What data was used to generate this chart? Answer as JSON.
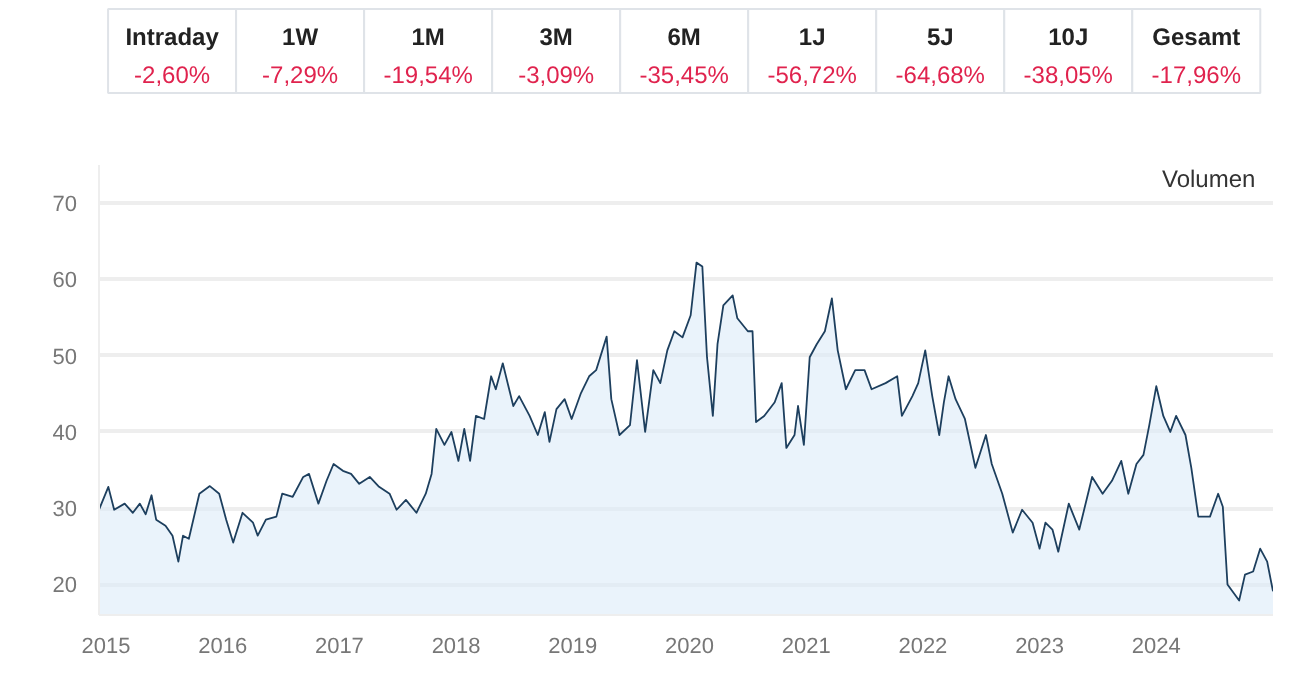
{
  "chart_data": {
    "type": "area",
    "color": "#1d3f5e",
    "x": [
      2014.94,
      2015.02,
      2015.07,
      2015.16,
      2015.23,
      2015.29,
      2015.34,
      2015.39,
      2015.43,
      2015.51,
      2015.57,
      2015.62,
      2015.66,
      2015.71,
      2015.8,
      2015.89,
      2015.97,
      2016.03,
      2016.09,
      2016.17,
      2016.26,
      2016.3,
      2016.37,
      2016.46,
      2016.51,
      2016.6,
      2016.69,
      2016.74,
      2016.82,
      2016.89,
      2016.95,
      2017.03,
      2017.1,
      2017.17,
      2017.26,
      2017.34,
      2017.43,
      2017.49,
      2017.57,
      2017.66,
      2017.74,
      2017.79,
      2017.83,
      2017.9,
      2017.96,
      2018.02,
      2018.07,
      2018.12,
      2018.17,
      2018.24,
      2018.3,
      2018.34,
      2018.4,
      2018.49,
      2018.54,
      2018.63,
      2018.7,
      2018.76,
      2018.8,
      2018.86,
      2018.93,
      2018.99,
      2019.07,
      2019.14,
      2019.2,
      2019.29,
      2019.33,
      2019.4,
      2019.49,
      2019.55,
      2019.62,
      2019.69,
      2019.75,
      2019.81,
      2019.87,
      2019.94,
      2020.01,
      2020.06,
      2020.11,
      2020.15,
      2020.2,
      2020.24,
      2020.29,
      2020.37,
      2020.41,
      2020.5,
      2020.54,
      2020.57,
      2020.64,
      2020.73,
      2020.79,
      2020.83,
      2020.9,
      2020.93,
      2020.98,
      2021.03,
      2021.09,
      2021.16,
      2021.22,
      2021.27,
      2021.34,
      2021.42,
      2021.5,
      2021.56,
      2021.68,
      2021.78,
      2021.82,
      2021.91,
      2021.96,
      2022.02,
      2022.08,
      2022.14,
      2022.18,
      2022.22,
      2022.28,
      2022.36,
      2022.45,
      2022.54,
      2022.59,
      2022.68,
      2022.77,
      2022.85,
      2022.94,
      2023.0,
      2023.05,
      2023.11,
      2023.16,
      2023.25,
      2023.34,
      2023.45,
      2023.54,
      2023.62,
      2023.7,
      2023.76,
      2023.83,
      2023.89,
      2023.94,
      2024.0,
      2024.06,
      2024.12,
      2024.17,
      2024.25,
      2024.3,
      2024.36,
      2024.46,
      2024.53,
      2024.57,
      2024.61,
      2024.71,
      2024.76,
      2024.83,
      2024.89,
      2024.95,
      2025.0
    ],
    "values": [
      29.8,
      32.8,
      29.8,
      30.6,
      29.4,
      30.6,
      29.2,
      31.7,
      28.5,
      27.7,
      26.4,
      23.0,
      26.4,
      26.0,
      31.9,
      32.9,
      31.9,
      28.5,
      25.5,
      29.4,
      28.1,
      26.4,
      28.5,
      28.9,
      31.9,
      31.5,
      34.1,
      34.5,
      30.6,
      33.6,
      35.8,
      34.9,
      34.5,
      33.2,
      34.1,
      32.8,
      31.9,
      29.8,
      31.1,
      29.4,
      31.9,
      34.5,
      40.4,
      38.3,
      40.0,
      36.2,
      40.4,
      36.2,
      42.1,
      41.7,
      47.3,
      45.6,
      49.0,
      43.4,
      44.7,
      42.1,
      39.6,
      42.6,
      38.7,
      43.0,
      44.3,
      41.7,
      45.1,
      47.3,
      48.1,
      52.5,
      44.3,
      39.6,
      40.9,
      49.4,
      40.0,
      48.1,
      46.4,
      50.7,
      53.2,
      52.4,
      55.3,
      62.2,
      61.7,
      49.8,
      42.1,
      51.5,
      56.6,
      57.9,
      54.9,
      53.2,
      53.2,
      41.3,
      42.1,
      43.9,
      46.4,
      37.9,
      39.6,
      43.4,
      38.3,
      49.8,
      51.5,
      53.2,
      57.5,
      50.7,
      45.6,
      48.1,
      48.1,
      45.6,
      46.4,
      47.3,
      42.1,
      44.7,
      46.4,
      50.7,
      44.7,
      39.6,
      43.9,
      47.3,
      44.3,
      41.7,
      35.3,
      39.6,
      35.8,
      31.9,
      26.8,
      29.8,
      28.1,
      24.7,
      28.1,
      27.2,
      24.3,
      30.6,
      27.2,
      34.1,
      31.9,
      33.6,
      36.2,
      31.9,
      35.8,
      37.0,
      40.9,
      46.0,
      42.1,
      40.0,
      42.1,
      39.6,
      35.3,
      28.9,
      28.9,
      31.9,
      30.2,
      20.0,
      17.9,
      21.3,
      21.7,
      24.7,
      23.0,
      19.1
    ],
    "xlim": [
      2014.94,
      2025.0
    ],
    "xticks": [
      2015,
      2016,
      2017,
      2018,
      2019,
      2020,
      2021,
      2022,
      2023,
      2024
    ],
    "ylim": [
      16,
      75
    ],
    "yticks": [
      20,
      30,
      40,
      50,
      60,
      70
    ],
    "grid": "y",
    "annotations": [
      "Intraday",
      "-2,60%",
      "1W",
      "-7,29%",
      "1M",
      "-19,54%",
      "3M",
      "-3,09%",
      "6M",
      "-35,45%",
      "1J",
      "-56,72%",
      "5J",
      "-64,68%",
      "10J",
      "-38,05%",
      "Gesamt",
      "-17,96%",
      "Volumen"
    ]
  }
}
